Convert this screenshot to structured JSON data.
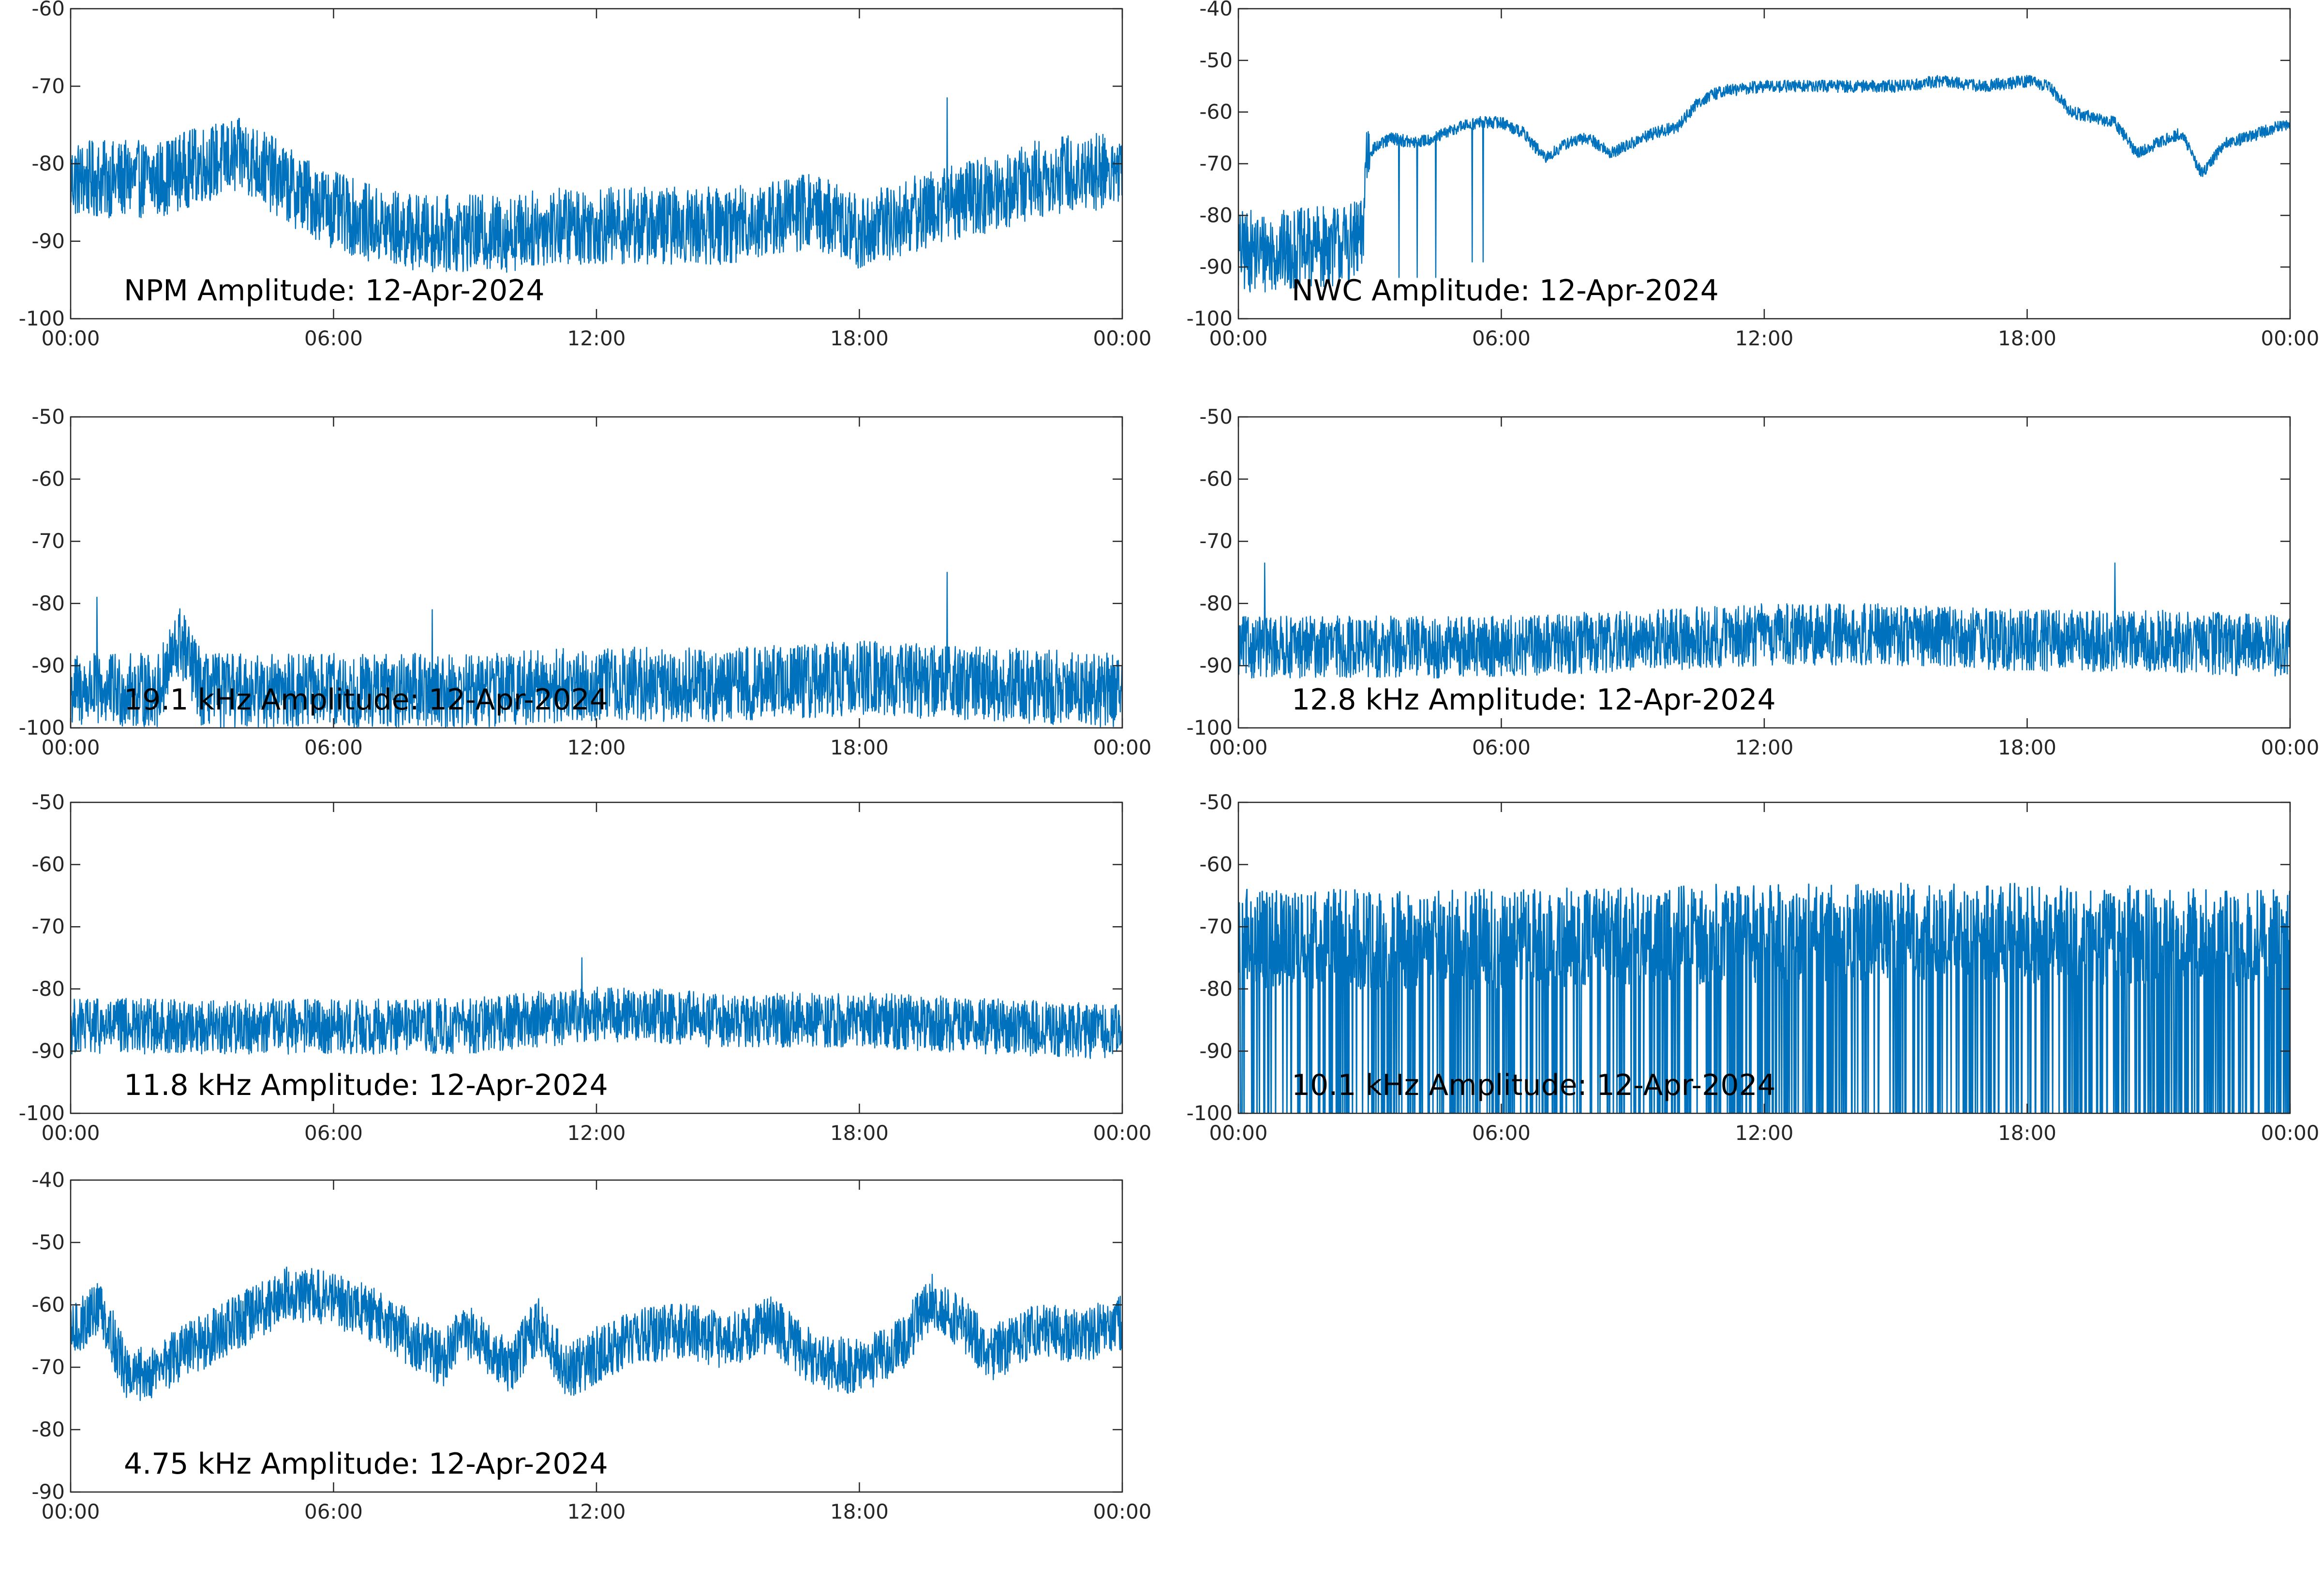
{
  "figure": {
    "background": "#ffffff",
    "line_color": "#0072BD"
  },
  "chart_data": [
    {
      "type": "line",
      "title": "NPM Amplitude: 12-Apr-2024",
      "xlabel": "",
      "ylabel": "",
      "xlim": [
        "00:00",
        "24:00"
      ],
      "ylim": [
        -100,
        -60
      ],
      "yticks": [
        -60,
        -70,
        -80,
        -90,
        -100
      ],
      "xticks": [
        "00:00",
        "06:00",
        "12:00",
        "18:00",
        "00:00"
      ],
      "grid": false,
      "series": [
        {
          "x": [
            "00:00",
            "01:00",
            "02:00",
            "03:00",
            "04:00",
            "05:00",
            "06:00",
            "07:00",
            "08:00",
            "09:00",
            "10:00",
            "11:00",
            "12:00",
            "13:00",
            "14:00",
            "15:00",
            "16:00",
            "17:00",
            "18:00",
            "19:00",
            "20:00",
            "21:00",
            "22:00",
            "23:00",
            "24:00"
          ],
          "y": [
            -82,
            -82,
            -82,
            -80,
            -79,
            -83,
            -86,
            -88,
            -89,
            -89,
            -89,
            -88,
            -88,
            -88,
            -88,
            -88,
            -87,
            -86,
            -89,
            -87,
            -85,
            -84,
            -82,
            -81,
            -81
          ],
          "noise": 5,
          "spikes": [
            {
              "x": "20:00",
              "y": -71.5
            }
          ]
        }
      ]
    },
    {
      "type": "line",
      "title": "NWC Amplitude: 12-Apr-2024",
      "xlabel": "",
      "ylabel": "",
      "xlim": [
        "00:00",
        "24:00"
      ],
      "ylim": [
        -100,
        -40
      ],
      "yticks": [
        -40,
        -50,
        -60,
        -70,
        -80,
        -90,
        -100
      ],
      "xticks": [
        "00:00",
        "06:00",
        "12:00",
        "18:00",
        "00:00"
      ],
      "grid": false,
      "series": [
        {
          "x": [
            "00:00",
            "01:00",
            "02:00",
            "02:50",
            "02:55",
            "03:30",
            "04:00",
            "04:30",
            "05:00",
            "05:30",
            "06:00",
            "06:30",
            "07:00",
            "07:30",
            "08:00",
            "08:30",
            "09:00",
            "09:30",
            "10:00",
            "10:30",
            "11:00",
            "12:00",
            "13:00",
            "14:00",
            "15:00",
            "16:00",
            "17:00",
            "18:00",
            "18:30",
            "19:00",
            "19:30",
            "20:00",
            "20:30",
            "21:00",
            "21:30",
            "22:00",
            "22:30",
            "23:00",
            "24:00"
          ],
          "y": [
            -87,
            -87,
            -86,
            -85,
            -68,
            -65,
            -66,
            -65,
            -63,
            -62,
            -62,
            -64,
            -69,
            -66,
            -65,
            -68,
            -66,
            -64,
            -63,
            -58,
            -56,
            -55,
            -55,
            -55,
            -55,
            -54,
            -55,
            -54,
            -55,
            -60,
            -61,
            -62,
            -68,
            -66,
            -64,
            -72,
            -66,
            -65,
            -62
          ],
          "noise": 1.2,
          "noise_before": {
            "x": "03:00",
            "amount": 8
          },
          "dropouts": [
            {
              "x": "03:40",
              "y": -92
            },
            {
              "x": "04:05",
              "y": -92
            },
            {
              "x": "04:30",
              "y": -92
            },
            {
              "x": "05:20",
              "y": -89
            },
            {
              "x": "05:35",
              "y": -89
            }
          ]
        }
      ]
    },
    {
      "type": "line",
      "title": "19.1 kHz Amplitude: 12-Apr-2024",
      "xlabel": "",
      "ylabel": "",
      "xlim": [
        "00:00",
        "24:00"
      ],
      "ylim": [
        -100,
        -50
      ],
      "yticks": [
        -50,
        -60,
        -70,
        -80,
        -90,
        -100
      ],
      "xticks": [
        "00:00",
        "06:00",
        "12:00",
        "18:00",
        "00:00"
      ],
      "grid": false,
      "series": [
        {
          "x": [
            "00:00",
            "02:00",
            "02:30",
            "03:00",
            "06:00",
            "09:00",
            "12:00",
            "15:00",
            "18:00",
            "21:00",
            "24:00"
          ],
          "y": [
            -94,
            -94,
            -86,
            -94,
            -94,
            -94,
            -93,
            -93,
            -92,
            -93,
            -94
          ],
          "noise": 6,
          "spikes": [
            {
              "x": "00:36",
              "y": -79
            },
            {
              "x": "08:15",
              "y": -81
            },
            {
              "x": "20:00",
              "y": -75
            }
          ]
        }
      ]
    },
    {
      "type": "line",
      "title": "12.8 kHz Amplitude: 12-Apr-2024",
      "xlabel": "",
      "ylabel": "",
      "xlim": [
        "00:00",
        "24:00"
      ],
      "ylim": [
        -100,
        -50
      ],
      "yticks": [
        -50,
        -60,
        -70,
        -80,
        -90,
        -100
      ],
      "xticks": [
        "00:00",
        "06:00",
        "12:00",
        "18:00",
        "00:00"
      ],
      "grid": false,
      "series": [
        {
          "x": [
            "00:00",
            "03:00",
            "06:00",
            "09:00",
            "12:00",
            "15:00",
            "18:00",
            "21:00",
            "24:00"
          ],
          "y": [
            -87,
            -87,
            -87,
            -86,
            -85,
            -85,
            -86,
            -86,
            -87
          ],
          "noise": 5,
          "spikes": [
            {
              "x": "00:36",
              "y": -73.5
            },
            {
              "x": "20:00",
              "y": -73.5
            }
          ]
        }
      ]
    },
    {
      "type": "line",
      "title": "11.8 kHz Amplitude: 12-Apr-2024",
      "xlabel": "",
      "ylabel": "",
      "xlim": [
        "00:00",
        "24:00"
      ],
      "ylim": [
        -100,
        -50
      ],
      "yticks": [
        -50,
        -60,
        -70,
        -80,
        -90,
        -100
      ],
      "xticks": [
        "00:00",
        "06:00",
        "12:00",
        "18:00",
        "00:00"
      ],
      "grid": false,
      "series": [
        {
          "x": [
            "00:00",
            "03:00",
            "06:00",
            "09:00",
            "12:00",
            "15:00",
            "18:00",
            "21:00",
            "24:00"
          ],
          "y": [
            -86,
            -86,
            -86,
            -86,
            -84,
            -85,
            -85,
            -86,
            -87
          ],
          "noise": 4.5,
          "spikes": [
            {
              "x": "11:40",
              "y": -75
            }
          ]
        }
      ]
    },
    {
      "type": "line",
      "title": "10.1 kHz Amplitude: 12-Apr-2024",
      "xlabel": "",
      "ylabel": "",
      "xlim": [
        "00:00",
        "24:00"
      ],
      "ylim": [
        -100,
        -50
      ],
      "yticks": [
        -50,
        -60,
        -70,
        -80,
        -90,
        -100
      ],
      "xticks": [
        "00:00",
        "06:00",
        "12:00",
        "18:00",
        "00:00"
      ],
      "grid": false,
      "series": [
        {
          "x": [
            "00:00",
            "06:00",
            "12:00",
            "18:00",
            "24:00"
          ],
          "y": [
            -72,
            -72,
            -71,
            -71,
            -72
          ],
          "noise": 8,
          "dropout_floor": -100,
          "peak": -62
        }
      ]
    },
    {
      "type": "line",
      "title": "4.75 kHz Amplitude: 12-Apr-2024",
      "xlabel": "",
      "ylabel": "",
      "xlim": [
        "00:00",
        "24:00"
      ],
      "ylim": [
        -90,
        -40
      ],
      "yticks": [
        -40,
        -50,
        -60,
        -70,
        -80,
        -90
      ],
      "xticks": [
        "00:00",
        "06:00",
        "12:00",
        "18:00",
        "00:00"
      ],
      "grid": false,
      "series": [
        {
          "x": [
            "00:00",
            "00:40",
            "01:20",
            "02:00",
            "03:00",
            "04:00",
            "05:00",
            "06:00",
            "07:00",
            "07:40",
            "08:30",
            "09:00",
            "10:00",
            "10:40",
            "11:20",
            "12:00",
            "13:00",
            "14:00",
            "15:00",
            "16:00",
            "17:00",
            "18:00",
            "19:00",
            "19:40",
            "20:20",
            "21:00",
            "22:00",
            "23:00",
            "24:00"
          ],
          "y": [
            -65,
            -60,
            -72,
            -70,
            -66,
            -62,
            -58,
            -59,
            -62,
            -65,
            -69,
            -64,
            -70,
            -63,
            -71,
            -68,
            -65,
            -64,
            -66,
            -63,
            -69,
            -70,
            -66,
            -59,
            -63,
            -68,
            -64,
            -65,
            -63
          ],
          "noise": 4.5
        }
      ]
    }
  ]
}
